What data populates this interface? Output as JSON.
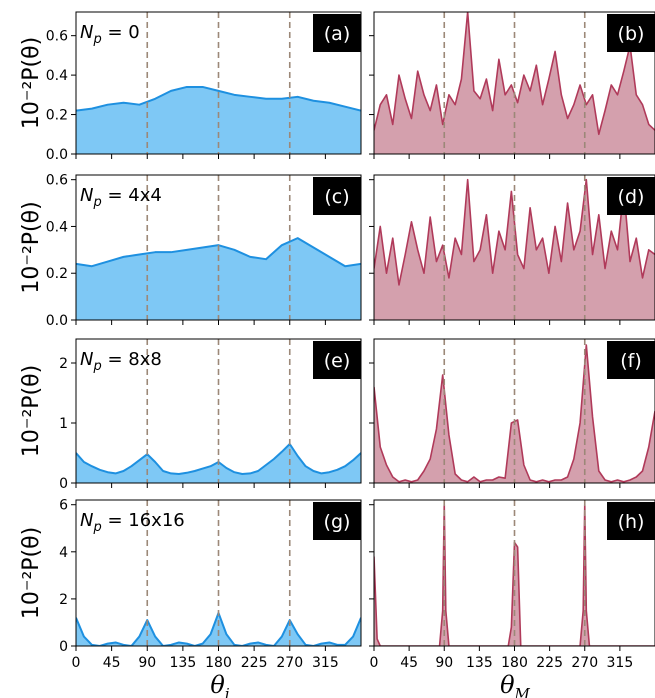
{
  "figure": {
    "ylabel": "10⁻²P(θ)",
    "xlabel_left": "θi",
    "xlabel_right": "θM",
    "xticks": [
      0,
      45,
      90,
      135,
      180,
      225,
      270,
      315
    ],
    "xlim": [
      0,
      360
    ],
    "colors": {
      "left_fill": "#7ec8f5",
      "left_line": "#1e90e0",
      "right_fill": "#d4a0ad",
      "right_line": "#b03a5a",
      "vline": "#9c8878"
    }
  },
  "rows": [
    {
      "np_label": "Np = 0",
      "yticks": [
        "0.0",
        "0.2",
        "0.4",
        "0.6"
      ],
      "ylim": [
        0,
        0.72
      ]
    },
    {
      "np_label": "Np = 4x4",
      "yticks": [
        "0.0",
        "0.2",
        "0.4",
        "0.6"
      ],
      "ylim": [
        0,
        0.62
      ]
    },
    {
      "np_label": "Np = 8x8",
      "yticks": [
        "0",
        "1",
        "2"
      ],
      "ylim": [
        0,
        2.4
      ]
    },
    {
      "np_label": "Np = 16x16",
      "yticks": [
        "0",
        "2",
        "4",
        "6"
      ],
      "ylim": [
        0,
        6.2
      ]
    }
  ],
  "chart_data": [
    {
      "panel": "(a)",
      "type": "area",
      "color": "#7ec8f5",
      "x": [
        0,
        20,
        40,
        60,
        80,
        100,
        120,
        140,
        160,
        180,
        200,
        220,
        240,
        260,
        280,
        300,
        320,
        340,
        360
      ],
      "y": [
        0.22,
        0.23,
        0.25,
        0.26,
        0.25,
        0.28,
        0.32,
        0.34,
        0.34,
        0.32,
        0.3,
        0.29,
        0.28,
        0.28,
        0.29,
        0.27,
        0.26,
        0.24,
        0.22
      ],
      "vlines": [
        90,
        180,
        270
      ],
      "xlim": [
        0,
        360
      ],
      "ylim": [
        0,
        0.72
      ]
    },
    {
      "panel": "(b)",
      "type": "area",
      "color": "#d4a0ad",
      "x": [
        0,
        8,
        16,
        24,
        32,
        40,
        48,
        56,
        64,
        72,
        80,
        88,
        96,
        104,
        112,
        120,
        128,
        136,
        144,
        152,
        160,
        168,
        176,
        184,
        192,
        200,
        208,
        216,
        224,
        232,
        240,
        248,
        256,
        264,
        272,
        280,
        288,
        296,
        304,
        312,
        320,
        328,
        336,
        344,
        352,
        360
      ],
      "y": [
        0.12,
        0.25,
        0.3,
        0.15,
        0.4,
        0.28,
        0.18,
        0.42,
        0.3,
        0.22,
        0.35,
        0.15,
        0.3,
        0.25,
        0.38,
        0.72,
        0.32,
        0.28,
        0.38,
        0.22,
        0.48,
        0.3,
        0.35,
        0.26,
        0.4,
        0.32,
        0.45,
        0.25,
        0.38,
        0.52,
        0.3,
        0.18,
        0.25,
        0.35,
        0.25,
        0.3,
        0.1,
        0.22,
        0.35,
        0.3,
        0.42,
        0.55,
        0.3,
        0.25,
        0.15,
        0.12
      ],
      "vlines": [
        90,
        180,
        270
      ],
      "xlim": [
        0,
        360
      ],
      "ylim": [
        0,
        0.72
      ]
    },
    {
      "panel": "(c)",
      "type": "area",
      "color": "#7ec8f5",
      "x": [
        0,
        20,
        40,
        60,
        80,
        100,
        120,
        140,
        160,
        180,
        200,
        220,
        240,
        260,
        280,
        300,
        320,
        340,
        360
      ],
      "y": [
        0.24,
        0.23,
        0.25,
        0.27,
        0.28,
        0.29,
        0.29,
        0.3,
        0.31,
        0.32,
        0.3,
        0.27,
        0.26,
        0.32,
        0.35,
        0.31,
        0.27,
        0.23,
        0.24
      ],
      "vlines": [
        90,
        180,
        270
      ],
      "xlim": [
        0,
        360
      ],
      "ylim": [
        0,
        0.62
      ]
    },
    {
      "panel": "(d)",
      "type": "area",
      "color": "#d4a0ad",
      "x": [
        0,
        8,
        16,
        24,
        32,
        40,
        48,
        56,
        64,
        72,
        80,
        88,
        96,
        104,
        112,
        120,
        128,
        136,
        144,
        152,
        160,
        168,
        176,
        184,
        192,
        200,
        208,
        216,
        224,
        232,
        240,
        248,
        256,
        264,
        272,
        280,
        288,
        296,
        304,
        312,
        320,
        328,
        336,
        344,
        352,
        360
      ],
      "y": [
        0.22,
        0.4,
        0.2,
        0.35,
        0.15,
        0.28,
        0.42,
        0.3,
        0.2,
        0.44,
        0.25,
        0.32,
        0.18,
        0.35,
        0.28,
        0.6,
        0.25,
        0.3,
        0.45,
        0.2,
        0.38,
        0.3,
        0.55,
        0.28,
        0.22,
        0.48,
        0.3,
        0.35,
        0.2,
        0.4,
        0.25,
        0.5,
        0.3,
        0.38,
        0.6,
        0.28,
        0.45,
        0.22,
        0.38,
        0.3,
        0.56,
        0.25,
        0.35,
        0.18,
        0.3,
        0.28
      ],
      "vlines": [
        90,
        180,
        270
      ],
      "xlim": [
        0,
        360
      ],
      "ylim": [
        0,
        0.62
      ]
    },
    {
      "panel": "(e)",
      "type": "area",
      "color": "#7ec8f5",
      "x": [
        0,
        10,
        20,
        30,
        40,
        50,
        60,
        70,
        80,
        90,
        100,
        110,
        120,
        130,
        140,
        150,
        160,
        170,
        180,
        190,
        200,
        210,
        220,
        230,
        240,
        250,
        260,
        270,
        280,
        290,
        300,
        310,
        320,
        330,
        340,
        350,
        360
      ],
      "y": [
        0.5,
        0.35,
        0.28,
        0.22,
        0.18,
        0.16,
        0.2,
        0.28,
        0.38,
        0.48,
        0.35,
        0.2,
        0.16,
        0.15,
        0.17,
        0.2,
        0.24,
        0.28,
        0.35,
        0.25,
        0.18,
        0.15,
        0.16,
        0.2,
        0.3,
        0.4,
        0.52,
        0.65,
        0.45,
        0.28,
        0.2,
        0.16,
        0.18,
        0.22,
        0.28,
        0.38,
        0.5
      ],
      "vlines": [
        90,
        180,
        270
      ],
      "xlim": [
        0,
        360
      ],
      "ylim": [
        0,
        2.4
      ]
    },
    {
      "panel": "(f)",
      "type": "area",
      "color": "#d4a0ad",
      "x": [
        0,
        8,
        16,
        24,
        32,
        40,
        48,
        56,
        64,
        72,
        80,
        88,
        96,
        104,
        112,
        120,
        128,
        136,
        144,
        152,
        160,
        168,
        176,
        184,
        192,
        200,
        208,
        216,
        224,
        232,
        240,
        248,
        256,
        264,
        272,
        280,
        288,
        296,
        304,
        312,
        320,
        328,
        336,
        344,
        352,
        360
      ],
      "y": [
        1.6,
        0.6,
        0.3,
        0.1,
        0.02,
        0.05,
        0.02,
        0.05,
        0.2,
        0.4,
        0.9,
        1.8,
        0.8,
        0.15,
        0.05,
        0.02,
        0.1,
        0.02,
        0.05,
        0.05,
        0.1,
        0.08,
        1.0,
        1.05,
        0.3,
        0.05,
        0.02,
        0.05,
        0.02,
        0.05,
        0.05,
        0.1,
        0.4,
        1.0,
        2.3,
        1.1,
        0.2,
        0.05,
        0.02,
        0.05,
        0.02,
        0.05,
        0.1,
        0.2,
        0.6,
        1.2
      ],
      "vlines": [
        90,
        180,
        270
      ],
      "xlim": [
        0,
        360
      ],
      "ylim": [
        0,
        2.4
      ]
    },
    {
      "panel": "(g)",
      "type": "area",
      "color": "#7ec8f5",
      "x": [
        0,
        10,
        20,
        30,
        40,
        50,
        60,
        70,
        80,
        90,
        100,
        110,
        120,
        130,
        140,
        150,
        160,
        170,
        180,
        190,
        200,
        210,
        220,
        230,
        240,
        250,
        260,
        270,
        280,
        290,
        300,
        310,
        320,
        330,
        340,
        350,
        360
      ],
      "y": [
        1.2,
        0.4,
        0.05,
        0.0,
        0.1,
        0.15,
        0.05,
        0.0,
        0.4,
        1.1,
        0.4,
        0.0,
        0.05,
        0.15,
        0.1,
        0.0,
        0.1,
        0.5,
        1.4,
        0.5,
        0.05,
        0.0,
        0.1,
        0.15,
        0.05,
        0.0,
        0.4,
        1.1,
        0.5,
        0.05,
        0.0,
        0.1,
        0.15,
        0.05,
        0.05,
        0.4,
        1.2
      ],
      "vlines": [
        90,
        180,
        270
      ],
      "xlim": [
        0,
        360
      ],
      "ylim": [
        0,
        6.2
      ]
    },
    {
      "panel": "(h)",
      "type": "area",
      "color": "#d4a0ad",
      "x": [
        0,
        4,
        8,
        12,
        84,
        88,
        90,
        92,
        96,
        172,
        176,
        180,
        184,
        188,
        264,
        268,
        270,
        272,
        276,
        356,
        360
      ],
      "y": [
        3.8,
        0.3,
        0.0,
        0.0,
        0.0,
        1.5,
        6.0,
        1.5,
        0.0,
        0.0,
        0.8,
        4.4,
        4.2,
        0.0,
        0.0,
        1.5,
        6.0,
        1.5,
        0.0,
        0.0,
        0.0
      ],
      "vlines": [
        90,
        180,
        270
      ],
      "xlim": [
        0,
        360
      ],
      "ylim": [
        0,
        6.2
      ]
    }
  ]
}
